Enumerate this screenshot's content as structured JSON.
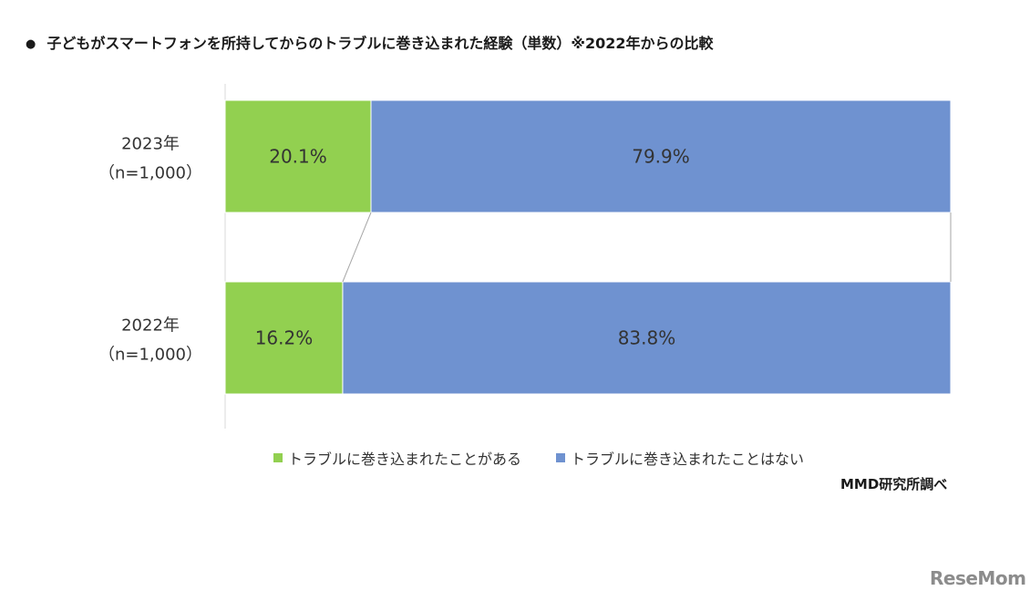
{
  "title": "子どもがスマートフォンを所持してからのトラブルに巻き込まれた経験（単数）※2022年からの比較",
  "bullet": "●",
  "source": "MMD研究所調べ",
  "watermark": "ReseMom",
  "colors": {
    "series1": "#92d050",
    "series2": "#6f92d0",
    "axis": "#d9d9d9",
    "connector": "#a6a6a6"
  },
  "chart_data": {
    "type": "bar",
    "orientation": "horizontal",
    "stacked": "100%",
    "categories": [
      {
        "label": "2023年",
        "sublabel": "（n=1,000）"
      },
      {
        "label": "2022年",
        "sublabel": "（n=1,000）"
      }
    ],
    "series": [
      {
        "name": "トラブルに巻き込まれたことがある",
        "values": [
          20.1,
          16.2
        ],
        "labels": [
          "20.1%",
          "16.2%"
        ]
      },
      {
        "name": "トラブルに巻き込まれたことはない",
        "values": [
          79.9,
          83.8
        ],
        "labels": [
          "79.9%",
          "83.8%"
        ]
      }
    ],
    "xlim": [
      0,
      100
    ],
    "legend": "bottom",
    "grid": false
  }
}
